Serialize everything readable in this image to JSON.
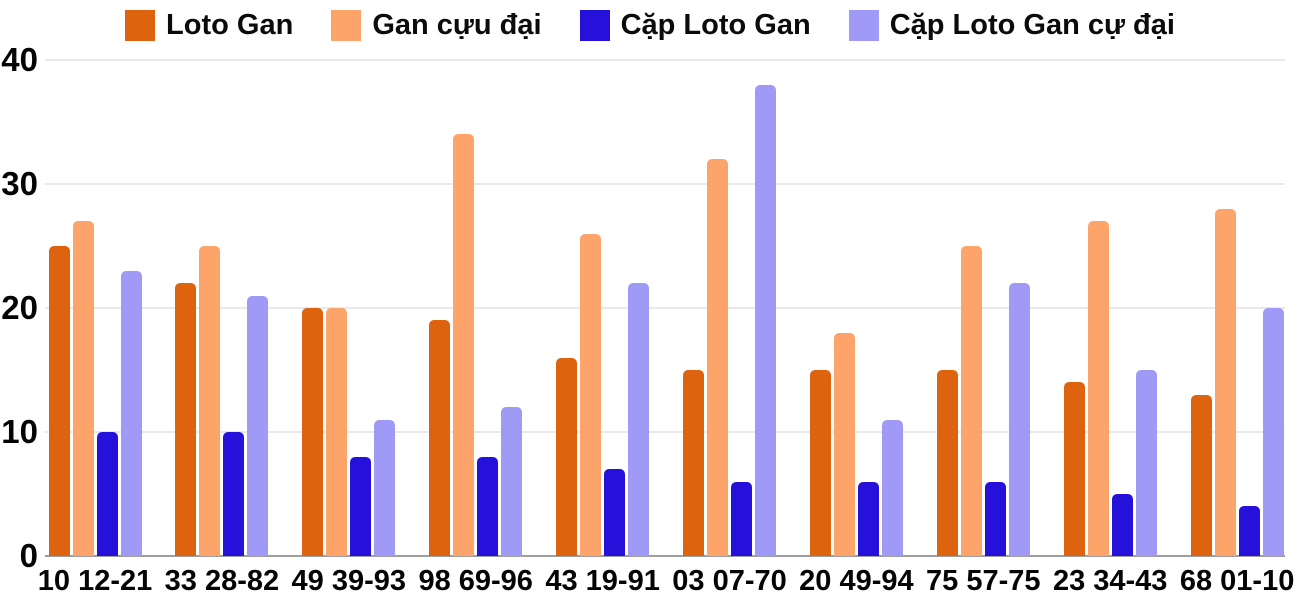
{
  "chart_data": {
    "type": "bar",
    "title": "",
    "categories": [
      "10 12-21",
      "33 28-82",
      "49 39-93",
      "98 69-96",
      "43 19-91",
      "03 07-70",
      "20 49-94",
      "75 57-75",
      "23 34-43",
      "68 01-10"
    ],
    "series": [
      {
        "name": "Loto Gan",
        "color": "#dd630e",
        "values": [
          25,
          22,
          20,
          19,
          16,
          15,
          15,
          15,
          14,
          13
        ]
      },
      {
        "name": "Gan cựu đại",
        "color": "#fca469",
        "values": [
          27,
          25,
          20,
          34,
          26,
          32,
          18,
          25,
          27,
          28
        ]
      },
      {
        "name": "Cặp Loto Gan",
        "color": "#2511d9",
        "values": [
          10,
          10,
          8,
          8,
          7,
          6,
          6,
          6,
          5,
          4
        ]
      },
      {
        "name": "Cặp Loto Gan cự đại",
        "color": "#a09af7",
        "values": [
          23,
          21,
          11,
          12,
          22,
          38,
          11,
          22,
          15,
          20
        ]
      }
    ],
    "ylim": [
      0,
      40
    ],
    "yticks": [
      0,
      10,
      20,
      30,
      40
    ],
    "grid": true,
    "legend_position": "top",
    "axis_color": "#9e9e9e",
    "gridline_color": "#e9e9e9",
    "background_color": "#ffffff"
  }
}
